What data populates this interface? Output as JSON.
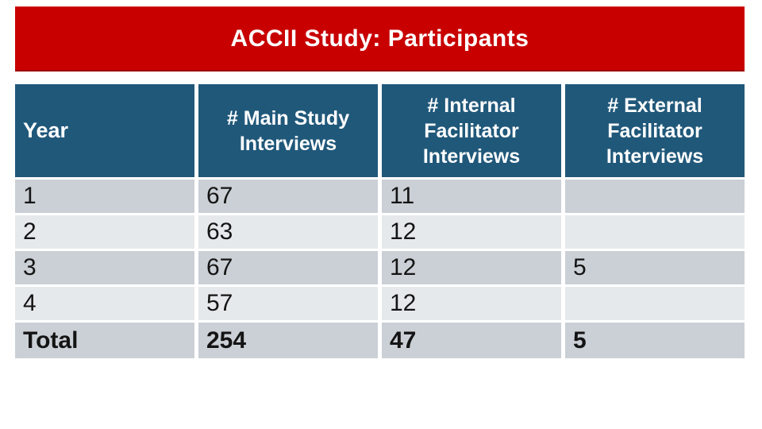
{
  "slide_title": "ACCII Study: Participants",
  "table": {
    "columns": [
      "Year",
      "# Main Study Interviews",
      "# Internal Facilitator Interviews",
      "# External Facilitator Interviews"
    ],
    "rows": [
      {
        "year": "1",
        "main": "67",
        "internal": "11",
        "external": ""
      },
      {
        "year": "2",
        "main": "63",
        "internal": "12",
        "external": ""
      },
      {
        "year": "3",
        "main": "67",
        "internal": "12",
        "external": "5"
      },
      {
        "year": "4",
        "main": "57",
        "internal": "12",
        "external": ""
      },
      {
        "year": "Total",
        "main": "254",
        "internal": "47",
        "external": "5"
      }
    ]
  },
  "colors": {
    "title_bar": "#c80000",
    "header_cell": "#20587a",
    "row_dark": "#cbd0d6",
    "row_light": "#e6e9ec",
    "title_text": "#ffffff",
    "body_text": "#141414"
  }
}
